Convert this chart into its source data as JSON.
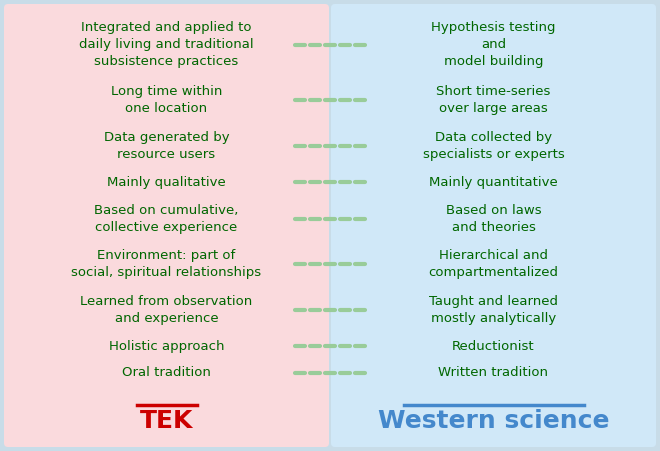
{
  "title_left": "TEK",
  "title_right": "Western science",
  "title_left_color": "#cc0000",
  "title_right_color": "#4488cc",
  "text_color": "#006600",
  "bg_left": "#fadadd",
  "bg_right": "#d0e8f8",
  "bg_outer": "#c8dce8",
  "dash_color": "#99cc99",
  "rows": [
    {
      "left": "Oral tradition",
      "right": "Written tradition"
    },
    {
      "left": "Holistic approach",
      "right": "Reductionist"
    },
    {
      "left": "Learned from observation\nand experience",
      "right": "Taught and learned\nmostly analytically"
    },
    {
      "left": "Environment: part of\nsocial, spiritual relationships",
      "right": "Hierarchical and\ncompartmentalized"
    },
    {
      "left": "Based on cumulative,\ncollective experience",
      "right": "Based on laws\nand theories"
    },
    {
      "left": "Mainly qualitative",
      "right": "Mainly quantitative"
    },
    {
      "left": "Data generated by\nresource users",
      "right": "Data collected by\nspecialists or experts"
    },
    {
      "left": "Long time within\none location",
      "right": "Short time-series\nover large areas"
    },
    {
      "left": "Integrated and applied to\ndaily living and traditional\nsubsistence practices",
      "right": "Hypothesis testing\nand\nmodel building"
    }
  ],
  "figwidth": 6.6,
  "figheight": 4.51,
  "dpi": 100
}
